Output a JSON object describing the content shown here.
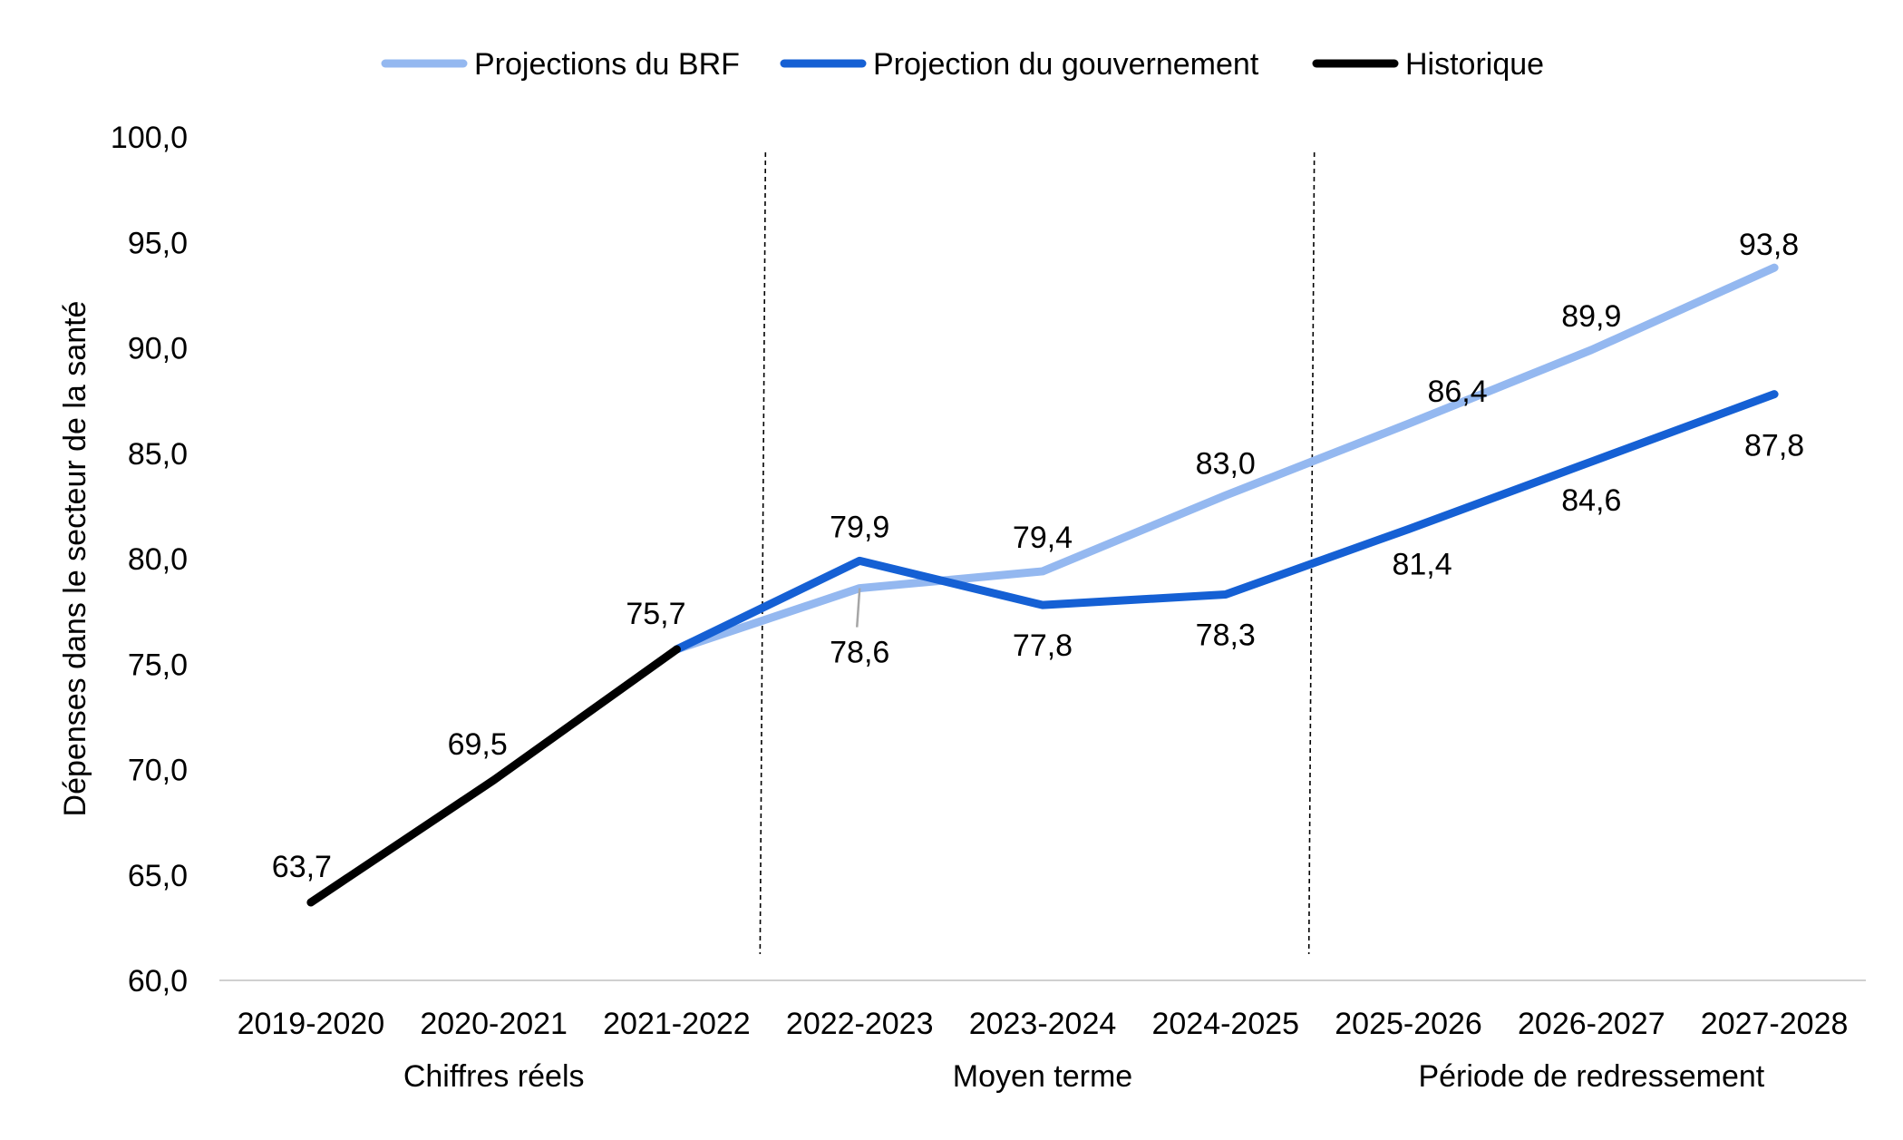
{
  "chart_data": {
    "type": "line",
    "ylabel": "Dépenses dans le secteur de la santé",
    "xlabel": "",
    "ylim": [
      60,
      100
    ],
    "y_ticks": [
      "60,0",
      "65,0",
      "70,0",
      "75,0",
      "80,0",
      "85,0",
      "90,0",
      "95,0",
      "100,0"
    ],
    "categories": [
      "2019-2020",
      "2020-2021",
      "2021-2022",
      "2022-2023",
      "2023-2024",
      "2024-2025",
      "2025-2026",
      "2026-2027",
      "2027-2028"
    ],
    "periods": [
      {
        "label": "Chiffres réels",
        "from": "2019-2020",
        "to": "2021-2022"
      },
      {
        "label": "Moyen terme",
        "from": "2022-2023",
        "to": "2024-2025"
      },
      {
        "label": "Période de redressement",
        "from": "2025-2026",
        "to": "2027-2028"
      }
    ],
    "grid": false,
    "legend_position": "top",
    "series": [
      {
        "name": "Projections du BRF",
        "color": "#94b8f0",
        "values": [
          null,
          null,
          75.7,
          78.6,
          79.4,
          83.0,
          86.4,
          89.9,
          93.8
        ],
        "labels": [
          null,
          null,
          null,
          "78,6",
          "79,4",
          "83,0",
          "86,4",
          "89,9",
          "93,8"
        ]
      },
      {
        "name": "Projection du gouvernement",
        "color": "#1560d4",
        "values": [
          null,
          null,
          75.7,
          79.9,
          77.8,
          78.3,
          81.4,
          84.6,
          87.8
        ],
        "labels": [
          null,
          null,
          null,
          "79,9",
          "77,8",
          "78,3",
          "81,4",
          "84,6",
          "87,8"
        ]
      },
      {
        "name": "Historique",
        "color": "#000000",
        "values": [
          63.7,
          69.5,
          75.7,
          null,
          null,
          null,
          null,
          null,
          null
        ],
        "labels": [
          "63,7",
          "69,5",
          "75,7",
          null,
          null,
          null,
          null,
          null,
          null
        ]
      }
    ]
  }
}
